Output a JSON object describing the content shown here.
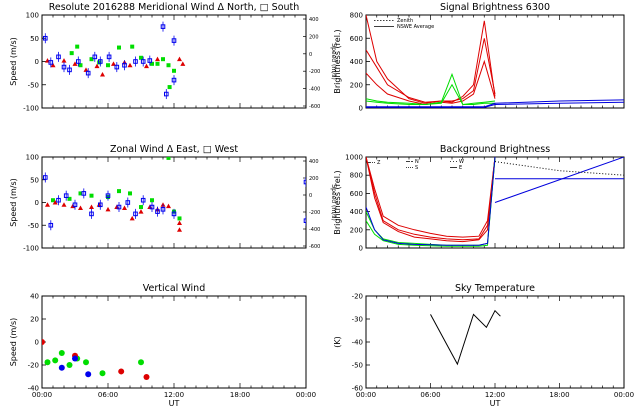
{
  "chart_data": [
    {
      "id": "merid",
      "type": "scatter",
      "title": "Resolute  2016288    Meridional Wind   Δ North, □ South",
      "xlabel": "",
      "ylabel": "Speed (m/s)",
      "ylim": [
        -100,
        100
      ],
      "yticks": [
        "100",
        "50",
        "0",
        "-50",
        "-100"
      ],
      "xlim": [
        0,
        24
      ],
      "xticks": [],
      "y2label": "Speed (m/s)",
      "y2ticks": [
        "400",
        "200",
        "0",
        "-200",
        "-400",
        "-600"
      ],
      "series": [
        {
          "name": "green",
          "color": "#00dd00",
          "marker": "square",
          "points": [
            [
              2.7,
              18
            ],
            [
              3.2,
              32
            ],
            [
              3.5,
              -8
            ],
            [
              4.5,
              5
            ],
            [
              5.2,
              -2
            ],
            [
              6.0,
              -8
            ],
            [
              7.0,
              30
            ],
            [
              8.2,
              32
            ],
            [
              9.0,
              8
            ],
            [
              10.0,
              -5
            ],
            [
              10.5,
              -5
            ],
            [
              11.0,
              5
            ],
            [
              11.5,
              -8
            ],
            [
              11.6,
              -55
            ],
            [
              12.0,
              -20
            ]
          ]
        },
        {
          "name": "red",
          "color": "#dd0000",
          "marker": "triangle",
          "points": [
            [
              0.5,
              2
            ],
            [
              1.0,
              -8
            ],
            [
              2.0,
              2
            ],
            [
              3.0,
              -5
            ],
            [
              4.0,
              -18
            ],
            [
              5.0,
              -10
            ],
            [
              5.5,
              -28
            ],
            [
              6.5,
              -5
            ],
            [
              7.5,
              -2
            ],
            [
              8.0,
              -8
            ],
            [
              9.5,
              -10
            ],
            [
              10.5,
              5
            ],
            [
              12.5,
              5
            ],
            [
              12.8,
              -5
            ]
          ]
        },
        {
          "name": "blue",
          "color": "#0000ee",
          "marker": "errsquare",
          "points": [
            [
              0.3,
              50
            ],
            [
              0.8,
              -2
            ],
            [
              1.5,
              10
            ],
            [
              2.0,
              -12
            ],
            [
              2.5,
              -18
            ],
            [
              3.3,
              0
            ],
            [
              4.2,
              -25
            ],
            [
              4.8,
              10
            ],
            [
              5.3,
              0
            ],
            [
              6.1,
              10
            ],
            [
              6.8,
              -12
            ],
            [
              7.5,
              -8
            ],
            [
              8.5,
              0
            ],
            [
              9.2,
              0
            ],
            [
              9.8,
              2
            ],
            [
              11.0,
              75
            ],
            [
              11.3,
              -70
            ],
            [
              12.0,
              45
            ],
            [
              12.0,
              -40
            ]
          ]
        }
      ]
    },
    {
      "id": "signal",
      "type": "line",
      "title": "Signal Brightness      6300",
      "xlabel": "",
      "ylabel": "Brightness (rel.)",
      "ylim": [
        0,
        800
      ],
      "yticks": [
        "800",
        "600",
        "400",
        "200",
        "0"
      ],
      "xlim": [
        0,
        24
      ],
      "xticks": [],
      "legend": [
        "Zenith",
        "NSWE Average"
      ],
      "series": [
        {
          "name": "red-1",
          "color": "#dd0000",
          "x": [
            0,
            1,
            2,
            4,
            5.5,
            7,
            8,
            9,
            10,
            11,
            12
          ],
          "y": [
            800,
            400,
            250,
            80,
            40,
            60,
            50,
            100,
            200,
            750,
            100
          ]
        },
        {
          "name": "red-2",
          "color": "#dd0000",
          "x": [
            0,
            1,
            2,
            4,
            5.5,
            7,
            8,
            9,
            10,
            11,
            12
          ],
          "y": [
            500,
            350,
            200,
            90,
            50,
            60,
            60,
            80,
            150,
            600,
            120
          ]
        },
        {
          "name": "red-3",
          "color": "#dd0000",
          "x": [
            0,
            1,
            2,
            4,
            5.5,
            7,
            8,
            9,
            10,
            11,
            12
          ],
          "y": [
            300,
            200,
            120,
            60,
            30,
            50,
            40,
            60,
            120,
            400,
            80
          ]
        },
        {
          "name": "green-1",
          "color": "#00dd00",
          "x": [
            0,
            1,
            2,
            4,
            5.5,
            7,
            8,
            9,
            10,
            11,
            12
          ],
          "y": [
            80,
            60,
            50,
            40,
            30,
            50,
            290,
            30,
            40,
            50,
            60
          ]
        },
        {
          "name": "green-2",
          "color": "#00dd00",
          "x": [
            0,
            1,
            2,
            4,
            5.5,
            7,
            8,
            9,
            10,
            11,
            12
          ],
          "y": [
            60,
            50,
            40,
            30,
            30,
            40,
            200,
            30,
            30,
            40,
            40
          ]
        },
        {
          "name": "blue-1",
          "color": "#0000dd",
          "x": [
            0,
            1,
            2,
            4,
            5.5,
            7,
            8,
            9,
            10,
            11,
            12,
            18,
            24
          ],
          "y": [
            10,
            10,
            10,
            10,
            10,
            10,
            10,
            10,
            10,
            10,
            40,
            60,
            70
          ]
        },
        {
          "name": "blue-2",
          "color": "#0000dd",
          "x": [
            0,
            1,
            2,
            4,
            5.5,
            7,
            8,
            9,
            10,
            11,
            12,
            18,
            24
          ],
          "y": [
            5,
            5,
            5,
            5,
            5,
            5,
            5,
            5,
            5,
            5,
            30,
            40,
            50
          ]
        }
      ]
    },
    {
      "id": "zonal",
      "type": "scatter",
      "title": "Zonal Wind      Δ East, □ West",
      "xlabel": "",
      "ylabel": "Speed (m/s)",
      "ylim": [
        -100,
        100
      ],
      "yticks": [
        "100",
        "50",
        "0",
        "-50",
        "-100"
      ],
      "xlim": [
        0,
        24
      ],
      "xticks": [],
      "y2label": "Speed (m/s)",
      "y2ticks": [
        "400",
        "200",
        "0",
        "-200",
        "-400",
        "-600"
      ],
      "series": [
        {
          "name": "green",
          "color": "#00dd00",
          "marker": "square",
          "points": [
            [
              1.0,
              5
            ],
            [
              2.5,
              8
            ],
            [
              3.5,
              20
            ],
            [
              4.5,
              15
            ],
            [
              6.0,
              12
            ],
            [
              7.0,
              25
            ],
            [
              8.0,
              20
            ],
            [
              9.0,
              -10
            ],
            [
              10.0,
              5
            ],
            [
              11.5,
              98
            ],
            [
              12.0,
              -20
            ],
            [
              12.5,
              -35
            ]
          ]
        },
        {
          "name": "red",
          "color": "#dd0000",
          "marker": "triangle",
          "points": [
            [
              0.5,
              -5
            ],
            [
              1.2,
              0
            ],
            [
              2.0,
              -5
            ],
            [
              2.8,
              -8
            ],
            [
              3.5,
              -12
            ],
            [
              4.5,
              -10
            ],
            [
              5.2,
              -5
            ],
            [
              6.0,
              -15
            ],
            [
              6.8,
              -10
            ],
            [
              7.5,
              -12
            ],
            [
              8.2,
              -35
            ],
            [
              9.0,
              -20
            ],
            [
              9.8,
              -10
            ],
            [
              10.5,
              -15
            ],
            [
              11.0,
              -5
            ],
            [
              11.5,
              -8
            ],
            [
              12.5,
              -45
            ],
            [
              12.5,
              -60
            ]
          ]
        },
        {
          "name": "blue",
          "color": "#0000ee",
          "marker": "errsquare",
          "points": [
            [
              0.3,
              55
            ],
            [
              0.8,
              -50
            ],
            [
              1.5,
              5
            ],
            [
              2.2,
              15
            ],
            [
              3.0,
              -5
            ],
            [
              3.8,
              20
            ],
            [
              4.5,
              -25
            ],
            [
              5.3,
              -5
            ],
            [
              6.0,
              15
            ],
            [
              7.0,
              -10
            ],
            [
              7.8,
              0
            ],
            [
              8.5,
              -25
            ],
            [
              9.2,
              5
            ],
            [
              10.0,
              -10
            ],
            [
              10.5,
              -20
            ],
            [
              11.0,
              -15
            ],
            [
              12.0,
              -25
            ],
            [
              24.0,
              45
            ],
            [
              24.0,
              -40
            ]
          ]
        }
      ]
    },
    {
      "id": "background",
      "type": "line",
      "title": "Background Brightness",
      "xlabel": "",
      "ylabel": "Brightness (rel.)",
      "ylim": [
        0,
        1000
      ],
      "yticks": [
        "1000",
        "800",
        "600",
        "400",
        "200",
        "0"
      ],
      "xlim": [
        0,
        24
      ],
      "xticks": [],
      "legend": [
        "Z",
        "N",
        "S",
        "W",
        "E"
      ],
      "series": [
        {
          "name": "red-z",
          "color": "#dd0000",
          "x": [
            0,
            0.8,
            1.6,
            3,
            4.5,
            6,
            7.5,
            9,
            10.5,
            11.3,
            12
          ],
          "y": [
            1000,
            600,
            300,
            200,
            150,
            120,
            100,
            90,
            100,
            250,
            1000
          ]
        },
        {
          "name": "red-n",
          "color": "#dd0000",
          "x": [
            0,
            0.8,
            1.6,
            3,
            4.5,
            6,
            7.5,
            9,
            10.5,
            11.3,
            12
          ],
          "y": [
            1000,
            650,
            350,
            250,
            200,
            160,
            130,
            120,
            130,
            300,
            1000
          ]
        },
        {
          "name": "red-s",
          "color": "#dd0000",
          "x": [
            0,
            0.8,
            1.6,
            3,
            4.5,
            6,
            7.5,
            9,
            10.5,
            11.3,
            12
          ],
          "y": [
            1000,
            550,
            280,
            180,
            120,
            100,
            80,
            70,
            90,
            200,
            1000
          ]
        },
        {
          "name": "green-a",
          "color": "#00dd00",
          "x": [
            0,
            0.8,
            1.6,
            3,
            4.5,
            6,
            7.5,
            9,
            10.5,
            11.3,
            12
          ],
          "y": [
            400,
            200,
            100,
            60,
            50,
            40,
            30,
            30,
            30,
            50,
            1000
          ]
        },
        {
          "name": "green-b",
          "color": "#00dd00",
          "x": [
            0,
            0.8,
            1.6,
            3,
            4.5,
            6,
            7.5,
            9,
            10.5,
            11.3,
            12
          ],
          "y": [
            300,
            150,
            80,
            40,
            30,
            25,
            20,
            20,
            20,
            30,
            1000
          ]
        },
        {
          "name": "blue-a",
          "color": "#0000dd",
          "x": [
            0,
            0.8,
            1.6,
            3,
            4.5,
            6,
            7.5,
            9,
            10.5,
            11.3,
            12
          ],
          "y": [
            450,
            200,
            90,
            50,
            40,
            35,
            30,
            30,
            30,
            50,
            1000
          ]
        },
        {
          "name": "blue-line",
          "color": "#0000dd",
          "x": [
            12,
            24
          ],
          "y": [
            500,
            1000
          ]
        },
        {
          "name": "blue-flat",
          "color": "#0000dd",
          "x": [
            12,
            24
          ],
          "y": [
            760,
            760
          ]
        },
        {
          "name": "black-dotted",
          "color": "#000000",
          "x": [
            12,
            18,
            24
          ],
          "y": [
            950,
            850,
            800
          ]
        }
      ]
    },
    {
      "id": "vertical",
      "type": "scatter",
      "title": "Vertical Wind",
      "xlabel": "UT",
      "ylabel": "Speed (m/s)",
      "ylim": [
        -50,
        50
      ],
      "yticks": [
        "40",
        "20",
        "0",
        "-20",
        "-40"
      ],
      "xlim": [
        0,
        24
      ],
      "xticks": [
        "00:00",
        "06:00",
        "12:00",
        "18:00",
        "00:00"
      ],
      "series": [
        {
          "name": "green",
          "color": "#00dd00",
          "marker": "dot",
          "points": [
            [
              0.5,
              -22
            ],
            [
              1.2,
              -20
            ],
            [
              1.8,
              -12
            ],
            [
              2.5,
              -25
            ],
            [
              3.2,
              -18
            ],
            [
              4.0,
              -22
            ],
            [
              5.5,
              -34
            ],
            [
              9.0,
              -22
            ]
          ]
        },
        {
          "name": "red",
          "color": "#dd0000",
          "marker": "dot",
          "points": [
            [
              0.0,
              0
            ],
            [
              3.0,
              -15
            ],
            [
              7.2,
              -32
            ],
            [
              9.5,
              -38
            ]
          ]
        },
        {
          "name": "blue",
          "color": "#0000ee",
          "marker": "dot",
          "points": [
            [
              1.8,
              -28
            ],
            [
              3.0,
              -18
            ],
            [
              4.2,
              -35
            ]
          ]
        }
      ]
    },
    {
      "id": "sky",
      "type": "line",
      "title": "Sky Temperature",
      "xlabel": "UT",
      "ylabel": "(K)",
      "ylim": [
        -60,
        -10
      ],
      "yticks": [
        "-20",
        "-30",
        "-40",
        "-50",
        "-60"
      ],
      "xlim": [
        0,
        24
      ],
      "xticks": [
        "00:00",
        "06:00",
        "12:00",
        "18:00",
        "00:00"
      ],
      "series": [
        {
          "name": "black",
          "color": "#000000",
          "x": [
            6.0,
            8.5,
            10.0,
            11.2,
            12.0,
            12.5
          ],
          "y": [
            -20,
            -47,
            -20,
            -27,
            -18,
            -21
          ]
        }
      ]
    }
  ]
}
